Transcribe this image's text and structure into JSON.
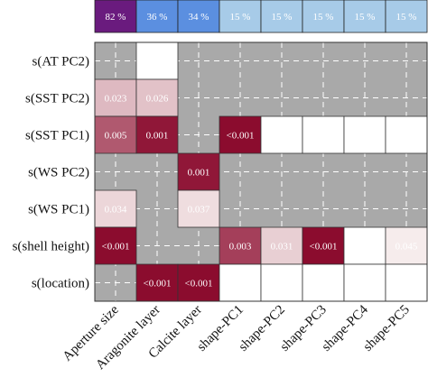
{
  "chart_data": {
    "type": "heatmap",
    "columns": [
      "Aperture size",
      "Aragonite layer",
      "Calcite layer",
      "shape-PC1",
      "shape-PC2",
      "shape-PC3",
      "shape-PC4",
      "shape-PC5"
    ],
    "column_percent_labels": [
      "82 %",
      "36 %",
      "34 %",
      "15 %",
      "15 %",
      "15 %",
      "15 %",
      "15 %"
    ],
    "column_percent_values": [
      82,
      36,
      34,
      15,
      15,
      15,
      15,
      15
    ],
    "rows": [
      "s(AT PC2)",
      "s(SST PC2)",
      "s(SST PC1)",
      "s(WS PC2)",
      "s(WS PC1)",
      "s(shell height)",
      "s(location)"
    ],
    "cells": [
      [
        {
          "state": "excluded"
        },
        {
          "state": "empty"
        },
        {
          "state": "excluded"
        },
        {
          "state": "excluded"
        },
        {
          "state": "excluded"
        },
        {
          "state": "excluded"
        },
        {
          "state": "excluded"
        },
        {
          "state": "excluded"
        }
      ],
      [
        {
          "state": "value",
          "label": "0.023",
          "p": 0.023
        },
        {
          "state": "value",
          "label": "0.026",
          "p": 0.026
        },
        {
          "state": "excluded"
        },
        {
          "state": "excluded"
        },
        {
          "state": "excluded"
        },
        {
          "state": "excluded"
        },
        {
          "state": "excluded"
        },
        {
          "state": "excluded"
        }
      ],
      [
        {
          "state": "value",
          "label": "0.005",
          "p": 0.005
        },
        {
          "state": "value",
          "label": "0.001",
          "p": 0.001
        },
        {
          "state": "excluded"
        },
        {
          "state": "value",
          "label": "<0.001",
          "p": 0.0005
        },
        {
          "state": "empty"
        },
        {
          "state": "empty"
        },
        {
          "state": "empty"
        },
        {
          "state": "empty"
        }
      ],
      [
        {
          "state": "excluded"
        },
        {
          "state": "excluded"
        },
        {
          "state": "value",
          "label": "0.001",
          "p": 0.001
        },
        {
          "state": "excluded"
        },
        {
          "state": "excluded"
        },
        {
          "state": "excluded"
        },
        {
          "state": "excluded"
        },
        {
          "state": "excluded"
        }
      ],
      [
        {
          "state": "value",
          "label": "0.034",
          "p": 0.034
        },
        {
          "state": "excluded"
        },
        {
          "state": "value",
          "label": "0.037",
          "p": 0.037
        },
        {
          "state": "excluded"
        },
        {
          "state": "excluded"
        },
        {
          "state": "excluded"
        },
        {
          "state": "excluded"
        },
        {
          "state": "excluded"
        }
      ],
      [
        {
          "state": "value",
          "label": "<0.001",
          "p": 0.0005
        },
        {
          "state": "excluded"
        },
        {
          "state": "excluded"
        },
        {
          "state": "value",
          "label": "0.003",
          "p": 0.003
        },
        {
          "state": "value",
          "label": "0.031",
          "p": 0.031
        },
        {
          "state": "value",
          "label": "<0.001",
          "p": 0.0005
        },
        {
          "state": "empty"
        },
        {
          "state": "value",
          "label": "0.045",
          "p": 0.045
        }
      ],
      [
        {
          "state": "excluded"
        },
        {
          "state": "value",
          "label": "<0.001",
          "p": 0.0005
        },
        {
          "state": "value",
          "label": "<0.001",
          "p": 0.0005
        },
        {
          "state": "empty"
        },
        {
          "state": "empty"
        },
        {
          "state": "empty"
        },
        {
          "state": "empty"
        },
        {
          "state": "empty"
        }
      ]
    ],
    "colors": {
      "excluded": "#a9a9a9",
      "empty": "#ffffff",
      "grid_dash": "#ffffff",
      "p_low": "#8b0c2e",
      "p_high": "#f6ecec",
      "percent_high": "#6a1b7e",
      "percent_mid": "#5b8fe0",
      "percent_low": "#a7cbe8"
    },
    "grid": true
  }
}
